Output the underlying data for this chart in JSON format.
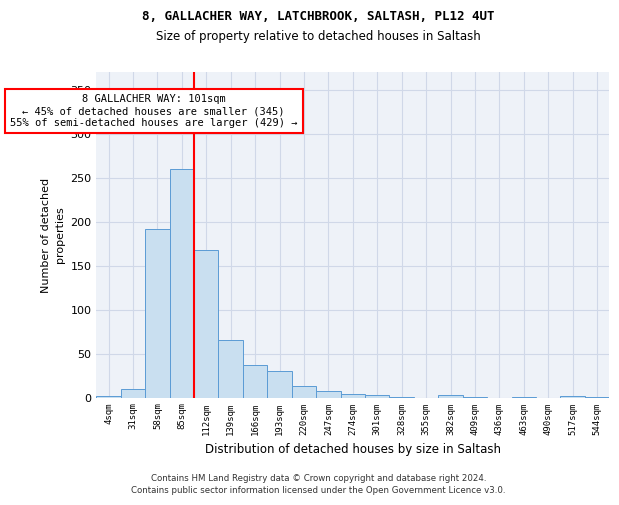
{
  "title1": "8, GALLACHER WAY, LATCHBROOK, SALTASH, PL12 4UT",
  "title2": "Size of property relative to detached houses in Saltash",
  "xlabel": "Distribution of detached houses by size in Saltash",
  "ylabel": "Number of detached\nproperties",
  "bin_labels": [
    "4sqm",
    "31sqm",
    "58sqm",
    "85sqm",
    "112sqm",
    "139sqm",
    "166sqm",
    "193sqm",
    "220sqm",
    "247sqm",
    "274sqm",
    "301sqm",
    "328sqm",
    "355sqm",
    "382sqm",
    "409sqm",
    "436sqm",
    "463sqm",
    "490sqm",
    "517sqm",
    "544sqm"
  ],
  "bar_heights": [
    2,
    10,
    192,
    260,
    168,
    65,
    37,
    30,
    13,
    7,
    4,
    3,
    1,
    0,
    3,
    1,
    0,
    1,
    0,
    2,
    1
  ],
  "bar_color": "#c9dff0",
  "bar_edge_color": "#5b9bd5",
  "annotation_text": "8 GALLACHER WAY: 101sqm\n← 45% of detached houses are smaller (345)\n55% of semi-detached houses are larger (429) →",
  "annotation_box_color": "white",
  "annotation_box_edge_color": "red",
  "vline_color": "red",
  "ylim": [
    0,
    370
  ],
  "yticks": [
    0,
    50,
    100,
    150,
    200,
    250,
    300,
    350
  ],
  "footer_text": "Contains HM Land Registry data © Crown copyright and database right 2024.\nContains public sector information licensed under the Open Government Licence v3.0.",
  "grid_color": "#d0d8e8",
  "bg_color": "#eef2f8",
  "title1_fontsize": 9,
  "title2_fontsize": 8.5,
  "annotation_fontsize": 7.5,
  "footer_fontsize": 6.2
}
